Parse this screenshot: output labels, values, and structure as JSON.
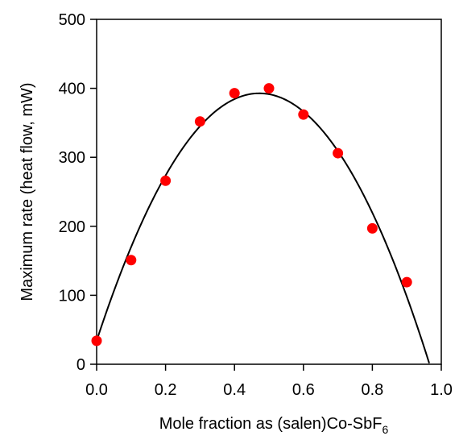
{
  "chart_data": {
    "type": "scatter",
    "title": "",
    "xlabel": "Mole fraction as (salen)Co-SbF",
    "xlabel_subscript": "6",
    "ylabel": "Maximum rate (heat flow, mW)",
    "xlim": [
      0.0,
      1.0
    ],
    "ylim": [
      0,
      500
    ],
    "xticks": [
      "0.0",
      "0.2",
      "0.4",
      "0.6",
      "0.8",
      "1.0"
    ],
    "yticks": [
      "0",
      "100",
      "200",
      "300",
      "400",
      "500"
    ],
    "grid": false,
    "legend": "none",
    "marker_color": "#ff0000",
    "fit_color": "#000000",
    "series": [
      {
        "type": "scatter",
        "x": [
          0.0,
          0.1,
          0.2,
          0.3,
          0.4,
          0.5,
          0.6,
          0.7,
          0.8,
          0.9
        ],
        "y": [
          34,
          151,
          266,
          352,
          393,
          400,
          362,
          306,
          197,
          119
        ]
      },
      {
        "type": "line",
        "description": "quadratic fit",
        "coefficients": [
          34,
          1520,
          -1610
        ],
        "x_range": [
          0.0,
          0.965
        ]
      }
    ]
  }
}
